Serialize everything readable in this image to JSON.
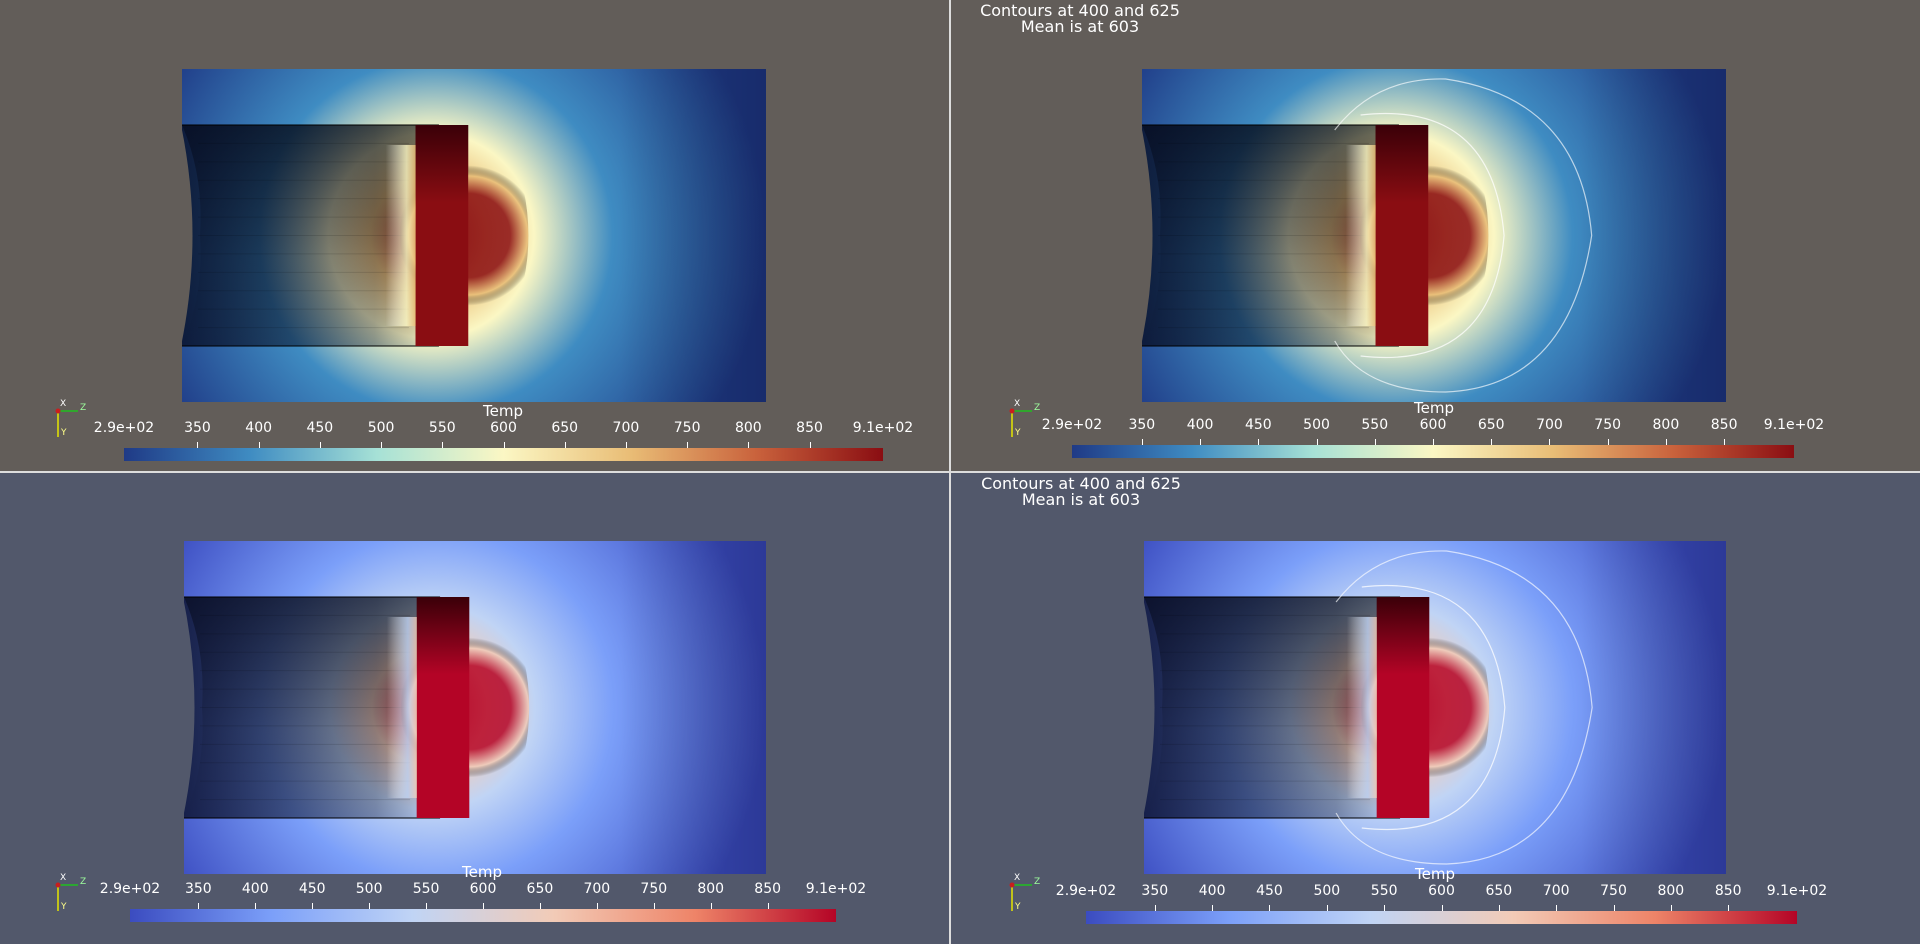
{
  "views": [
    {
      "id": "top-left",
      "background": "#625d59",
      "palette": "yellowblue",
      "title_lines": [],
      "contours": false,
      "colorbar": {
        "title": "Temp",
        "min_label": "2.9e+02",
        "max_label": "9.1e+02",
        "ticks": [
          "350",
          "400",
          "450",
          "500",
          "550",
          "600",
          "650",
          "700",
          "750",
          "800",
          "850"
        ]
      }
    },
    {
      "id": "top-right",
      "background": "#625d59",
      "palette": "yellowblue",
      "title_lines": [
        "Contours at 400 and 625",
        "Mean is at 603"
      ],
      "contours": true,
      "colorbar": {
        "title": "Temp",
        "min_label": "2.9e+02",
        "max_label": "9.1e+02",
        "ticks": [
          "350",
          "400",
          "450",
          "500",
          "550",
          "600",
          "650",
          "700",
          "750",
          "800",
          "850"
        ]
      }
    },
    {
      "id": "bottom-left",
      "background": "#52586b",
      "palette": "coolwarm",
      "title_lines": [],
      "contours": false,
      "colorbar": {
        "title": "Temp",
        "min_label": "2.9e+02",
        "max_label": "9.1e+02",
        "ticks": [
          "350",
          "400",
          "450",
          "500",
          "550",
          "600",
          "650",
          "700",
          "750",
          "800",
          "850"
        ]
      }
    },
    {
      "id": "bottom-right",
      "background": "#52586b",
      "palette": "coolwarm",
      "title_lines": [
        "Contours at 400 and 625",
        "Mean is at 603"
      ],
      "contours": true,
      "colorbar": {
        "title": "Temp",
        "min_label": "2.9e+02",
        "max_label": "9.1e+02",
        "ticks": [
          "350",
          "400",
          "450",
          "500",
          "550",
          "600",
          "650",
          "700",
          "750",
          "800",
          "850"
        ]
      }
    }
  ],
  "palettes": {
    "yellowblue": [
      "#1f3a86",
      "#3f8cc2",
      "#a6e1d6",
      "#fbf7c4",
      "#e9bd76",
      "#c9623c",
      "#8a0d12"
    ],
    "coolwarm": [
      "#3b4cc0",
      "#7b9ff9",
      "#c0d4f5",
      "#f2cbb7",
      "#ee8468",
      "#b40426"
    ]
  },
  "axes_labels": {
    "x": "X",
    "y": "Y",
    "z": "Z"
  }
}
